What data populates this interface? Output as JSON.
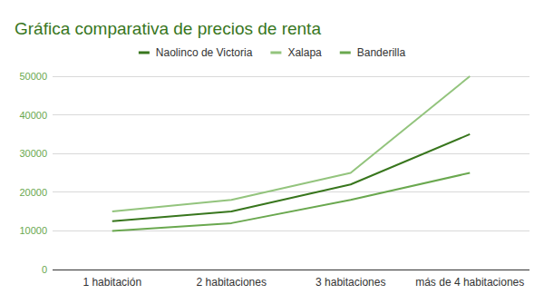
{
  "chart_data": {
    "type": "line",
    "title": "Gráfica comparativa de precios de renta",
    "categories": [
      "1 habitación",
      "2 habitaciones",
      "3 habitaciones",
      "más de 4 habitaciones"
    ],
    "series": [
      {
        "name": "Naolinco de Victoria",
        "color": "#38761d",
        "values": [
          12500,
          15000,
          22000,
          35000
        ]
      },
      {
        "name": "Xalapa",
        "color": "#93c47d",
        "values": [
          15000,
          18000,
          25000,
          50000
        ]
      },
      {
        "name": "Banderilla",
        "color": "#6aa84f",
        "values": [
          10000,
          12000,
          18000,
          25000
        ]
      }
    ],
    "ylim": [
      0,
      50000
    ],
    "yticks": [
      0,
      10000,
      20000,
      30000,
      40000,
      50000
    ],
    "grid": true,
    "legend": "top"
  }
}
